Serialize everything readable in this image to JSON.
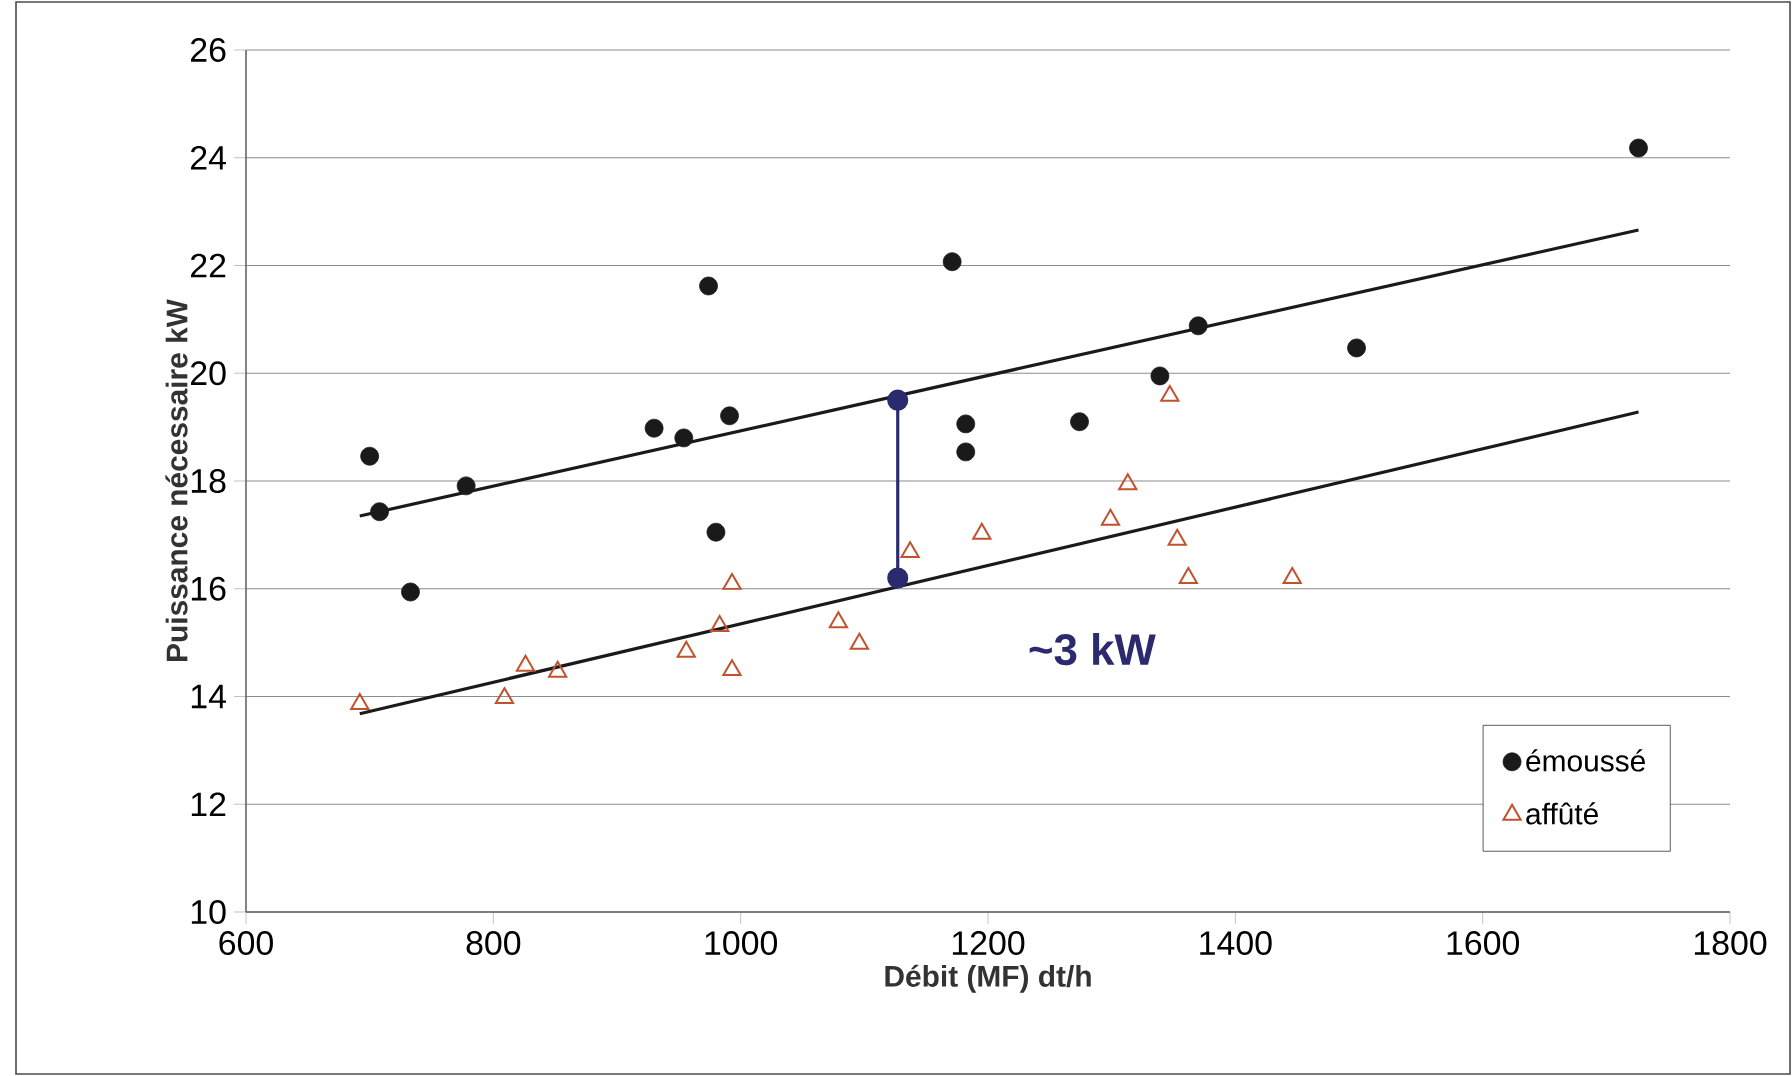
{
  "chart_data": {
    "type": "scatter",
    "xlabel": "Débit (MF) dt/h",
    "ylabel": "Puissance nécessaire kW",
    "xlim": [
      600,
      1800
    ],
    "xticks": [
      600,
      800,
      1000,
      1200,
      1400,
      1600,
      1800
    ],
    "ylim": [
      10,
      26
    ],
    "yticks": [
      10,
      12,
      14,
      16,
      18,
      20,
      22,
      24,
      26
    ],
    "grid": "y",
    "legend": "bottom right",
    "series": [
      {
        "name": "émoussé",
        "color": "#1a1a1a",
        "marker": "circle",
        "x": [
          700,
          708,
          733,
          778,
          930,
          954,
          974,
          980,
          991,
          1171,
          1182,
          1182,
          1274,
          1339,
          1370,
          1498,
          1726
        ],
        "values": [
          18.46,
          17.43,
          15.94,
          17.91,
          18.98,
          18.8,
          21.62,
          17.05,
          19.21,
          22.07,
          19.06,
          18.54,
          19.1,
          19.95,
          20.88,
          20.47,
          24.18
        ]
      },
      {
        "name": "affûté",
        "color": "#c0522d",
        "marker": "triangle",
        "x": [
          692,
          809,
          826,
          852,
          956,
          983,
          993,
          993,
          1079,
          1096,
          1137,
          1195,
          1299,
          1313,
          1347,
          1353,
          1362,
          1446
        ],
        "values": [
          13.86,
          13.97,
          14.57,
          14.46,
          14.83,
          15.31,
          16.09,
          14.49,
          15.38,
          14.98,
          16.68,
          17.02,
          17.28,
          17.94,
          19.58,
          16.91,
          16.2,
          16.2
        ]
      },
      {
        "type": "line",
        "color": "#1a1a1a",
        "marker": "none",
        "line_style": "solid",
        "x": [
          692,
          1726
        ],
        "values": [
          17.35,
          22.66
        ]
      },
      {
        "type": "line",
        "color": "#1a1a1a",
        "marker": "none",
        "line_style": "solid",
        "x": [
          692,
          1726
        ],
        "values": [
          13.68,
          19.28
        ]
      },
      {
        "type": "line",
        "color": "#2b2a6e",
        "marker": "circle",
        "line_style": "solid",
        "x": [
          1127,
          1127
        ],
        "values": [
          19.5,
          16.2
        ]
      }
    ],
    "annotations": [
      "~3 kW"
    ]
  }
}
